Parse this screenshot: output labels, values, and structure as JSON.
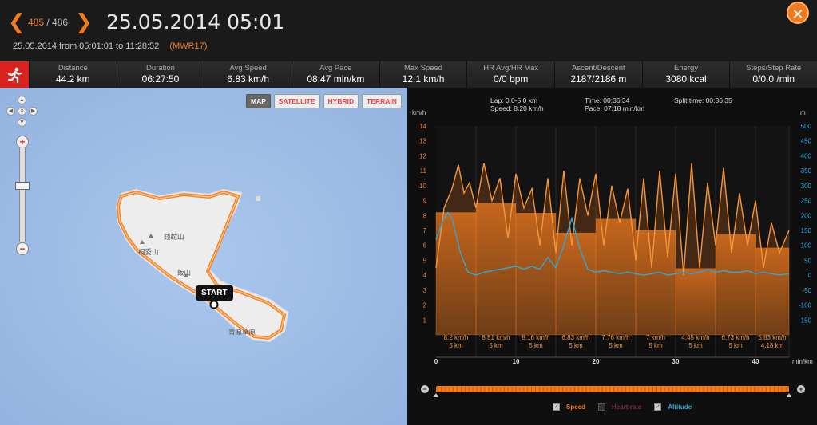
{
  "header": {
    "prev_icon": "chevron-left",
    "current_index": "485",
    "total": "/ 486",
    "next_icon": "chevron-right",
    "title": "25.05.2014 05:01",
    "subtitle": "25.05.2014 from 05:01:01 to 11:28:52",
    "device": "(MWR17)",
    "close_icon": "close-x"
  },
  "stats": [
    {
      "label": "Distance",
      "value": "44.2 km"
    },
    {
      "label": "Duration",
      "value": "06:27:50"
    },
    {
      "label": "Avg Speed",
      "value": "6.83 km/h"
    },
    {
      "label": "Avg Pace",
      "value": "08:47 min/km"
    },
    {
      "label": "Max Speed",
      "value": "12.1 km/h"
    },
    {
      "label": "HR Avg/HR Max",
      "value": "0/0 bpm"
    },
    {
      "label": "Ascent/Descent",
      "value": "2187/2186 m"
    },
    {
      "label": "Energy",
      "value": "3080 kcal"
    },
    {
      "label": "Steps/Step Rate",
      "value": "0/0.0 /min"
    }
  ],
  "map": {
    "types": [
      "MAP",
      "SATELLITE",
      "HYBRID",
      "TERRAIN"
    ],
    "active_type": "MAP",
    "start_label": "START",
    "places": [
      "錢蛇山",
      "桐愛山",
      "飯山",
      "青原草原"
    ]
  },
  "chart_info": {
    "lap": "Lap: 0.0-5.0 km",
    "speed": "Speed: 8.20 km/h",
    "time": "Time: 00:36:34",
    "pace": "Pace: 07:18 min/km",
    "split_time": "Split time: 00:36:35"
  },
  "legend": {
    "speed": "Speed",
    "heart_rate": "Heart rate",
    "altitude": "Altitude"
  },
  "colors": {
    "accent": "#f07a1e",
    "altitude": "#2fa8d6",
    "route": "#f07a1e",
    "sea": "#a7c4ea",
    "land": "#ededed"
  },
  "chart_data": {
    "type": "line",
    "x_unit": "min/km",
    "x_ticks": [
      0,
      10,
      20,
      30,
      40
    ],
    "x_range": [
      0,
      44.2
    ],
    "y_left_label": "km/h",
    "y_left_ticks": [
      1,
      2,
      3,
      4,
      5,
      6,
      7,
      8,
      9,
      10,
      11,
      12,
      13,
      14
    ],
    "y_left_range": [
      0,
      14
    ],
    "y_right_label": "m",
    "y_right_ticks": [
      -150,
      -100,
      -50,
      0,
      50,
      100,
      150,
      200,
      250,
      300,
      350,
      400,
      450,
      500
    ],
    "y_right_range": [
      -200,
      500
    ],
    "splits": [
      {
        "speed": "8.2 km/h",
        "dist": "5 km",
        "start": 0,
        "end": 5,
        "value": 8.2
      },
      {
        "speed": "8.81 km/h",
        "dist": "5 km",
        "start": 5,
        "end": 10,
        "value": 8.81
      },
      {
        "speed": "8.16 km/h",
        "dist": "5 km",
        "start": 10,
        "end": 15,
        "value": 8.16
      },
      {
        "speed": "6.83 km/h",
        "dist": "5 km",
        "start": 15,
        "end": 20,
        "value": 6.83
      },
      {
        "speed": "7.76 km/h",
        "dist": "5 km",
        "start": 20,
        "end": 25,
        "value": 7.76
      },
      {
        "speed": "7 km/h",
        "dist": "5 km",
        "start": 25,
        "end": 30,
        "value": 7.0
      },
      {
        "speed": "4.45 km/h",
        "dist": "5 km",
        "start": 30,
        "end": 35,
        "value": 4.45
      },
      {
        "speed": "6.73 km/h",
        "dist": "5 km",
        "start": 35,
        "end": 40,
        "value": 6.73
      },
      {
        "speed": "5.83 km/h",
        "dist": "4.18 km",
        "start": 40,
        "end": 44.2,
        "value": 5.83
      }
    ],
    "series": [
      {
        "name": "Speed",
        "axis": "left",
        "x": [
          0,
          1,
          2,
          2.8,
          3.5,
          4.2,
          5,
          6,
          7,
          8,
          9,
          10,
          11,
          12,
          13,
          14,
          15,
          16,
          17,
          18,
          19,
          20,
          21,
          22,
          23,
          24,
          25,
          26,
          27,
          28,
          29,
          30,
          31,
          32,
          33,
          34,
          35,
          36,
          37,
          38,
          39,
          40,
          41,
          42,
          43,
          44.2
        ],
        "y": [
          4.5,
          8.5,
          9.8,
          11.4,
          9.5,
          10.2,
          8.5,
          11.5,
          9.0,
          10.5,
          6.5,
          10.8,
          8.5,
          9.8,
          6.0,
          10.5,
          5.5,
          11.0,
          6.0,
          10.5,
          8.0,
          10.8,
          6.0,
          10.0,
          7.5,
          9.8,
          5.0,
          10.5,
          4.5,
          11.0,
          5.2,
          10.8,
          4.0,
          11.5,
          4.5,
          10.2,
          6.0,
          11.2,
          5.5,
          9.5,
          6.0,
          9.0,
          4.5,
          7.5,
          5.5,
          7.0
        ]
      },
      {
        "name": "Altitude",
        "axis": "right",
        "x": [
          0,
          1,
          1.5,
          2,
          3,
          4,
          5,
          6,
          7,
          8,
          9,
          10,
          11,
          12,
          13,
          14,
          15,
          16,
          17,
          18,
          19,
          20,
          21,
          22,
          23,
          24,
          25,
          26,
          27,
          28,
          29,
          30,
          31,
          32,
          33,
          34,
          35,
          36,
          37,
          38,
          39,
          40,
          41,
          42,
          43,
          44.2
        ],
        "y": [
          120,
          190,
          210,
          190,
          80,
          10,
          0,
          10,
          15,
          20,
          25,
          30,
          20,
          30,
          20,
          60,
          25,
          100,
          190,
          90,
          20,
          10,
          15,
          10,
          5,
          10,
          5,
          0,
          5,
          10,
          0,
          5,
          10,
          5,
          10,
          20,
          10,
          15,
          10,
          10,
          15,
          5,
          10,
          5,
          0,
          5
        ]
      }
    ]
  }
}
